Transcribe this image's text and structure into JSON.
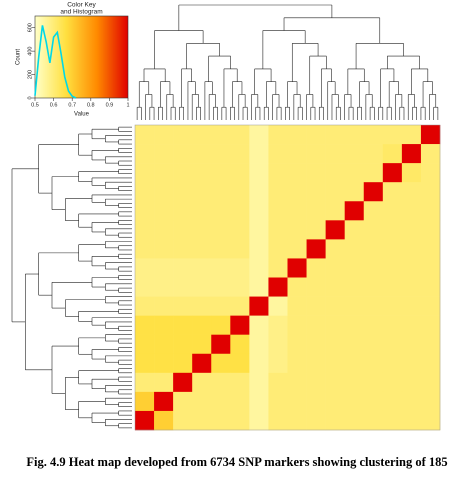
{
  "chart_data": [
    {
      "type": "histogram-key",
      "title": [
        "Color Key",
        "and Histogram"
      ],
      "x_label": "Value",
      "y_label": "Count",
      "x": [
        0.5,
        0.52,
        0.54,
        0.56,
        0.58,
        0.6,
        0.62,
        0.64,
        0.66,
        0.68,
        0.7,
        0.72
      ],
      "values": [
        20,
        350,
        620,
        480,
        300,
        520,
        560,
        380,
        180,
        60,
        15,
        0
      ],
      "color": "#00d8e8",
      "xlim": [
        0.5,
        1
      ],
      "xticks": [
        0.5,
        0.6,
        0.7,
        0.8,
        0.9,
        1
      ],
      "ylim": [
        0,
        700
      ],
      "yticks": [
        0,
        200,
        400,
        600
      ],
      "colormap": [
        "#ffffc8",
        "#ffe040",
        "#ff8a00",
        "#e00000"
      ]
    },
    {
      "type": "heatmap",
      "matrix": [
        [
          0.6,
          0.6,
          0.6,
          0.6,
          0.6,
          0.6,
          0.55,
          0.6,
          0.6,
          0.6,
          0.6,
          0.6,
          0.6,
          0.6,
          0.6,
          1
        ],
        [
          0.6,
          0.6,
          0.6,
          0.6,
          0.6,
          0.6,
          0.55,
          0.6,
          0.6,
          0.6,
          0.6,
          0.6,
          0.6,
          0.62,
          1,
          0.6
        ],
        [
          0.6,
          0.6,
          0.6,
          0.6,
          0.6,
          0.6,
          0.55,
          0.6,
          0.6,
          0.6,
          0.6,
          0.6,
          0.6,
          1,
          0.62,
          0.6
        ],
        [
          0.6,
          0.6,
          0.6,
          0.6,
          0.6,
          0.6,
          0.55,
          0.6,
          0.6,
          0.6,
          0.6,
          0.6,
          1,
          0.6,
          0.6,
          0.6
        ],
        [
          0.6,
          0.6,
          0.6,
          0.6,
          0.6,
          0.6,
          0.55,
          0.6,
          0.6,
          0.6,
          0.6,
          1,
          0.6,
          0.6,
          0.6,
          0.6
        ],
        [
          0.6,
          0.6,
          0.6,
          0.6,
          0.6,
          0.6,
          0.55,
          0.6,
          0.6,
          0.6,
          1,
          0.6,
          0.6,
          0.6,
          0.6,
          0.6
        ],
        [
          0.6,
          0.6,
          0.6,
          0.6,
          0.6,
          0.6,
          0.55,
          0.6,
          0.6,
          1,
          0.6,
          0.6,
          0.6,
          0.6,
          0.6,
          0.6
        ],
        [
          0.58,
          0.58,
          0.58,
          0.58,
          0.58,
          0.58,
          0.55,
          0.6,
          1,
          0.6,
          0.6,
          0.6,
          0.6,
          0.6,
          0.6,
          0.6
        ],
        [
          0.58,
          0.58,
          0.58,
          0.58,
          0.58,
          0.58,
          0.55,
          1,
          0.6,
          0.6,
          0.6,
          0.6,
          0.6,
          0.6,
          0.6,
          0.6
        ],
        [
          0.6,
          0.6,
          0.6,
          0.6,
          0.6,
          0.6,
          1,
          0.55,
          0.6,
          0.6,
          0.6,
          0.6,
          0.6,
          0.6,
          0.6,
          0.6
        ],
        [
          0.66,
          0.66,
          0.66,
          0.66,
          0.66,
          1,
          0.55,
          0.58,
          0.6,
          0.6,
          0.6,
          0.6,
          0.6,
          0.6,
          0.6,
          0.6
        ],
        [
          0.66,
          0.66,
          0.66,
          0.66,
          1,
          0.66,
          0.55,
          0.58,
          0.6,
          0.6,
          0.6,
          0.6,
          0.6,
          0.6,
          0.6,
          0.6
        ],
        [
          0.66,
          0.66,
          0.66,
          1,
          0.66,
          0.66,
          0.55,
          0.58,
          0.6,
          0.6,
          0.6,
          0.6,
          0.6,
          0.6,
          0.6,
          0.6
        ],
        [
          0.6,
          0.6,
          1,
          0.6,
          0.6,
          0.6,
          0.55,
          0.6,
          0.6,
          0.6,
          0.6,
          0.6,
          0.6,
          0.6,
          0.6,
          0.6
        ],
        [
          0.7,
          1,
          0.6,
          0.6,
          0.6,
          0.6,
          0.55,
          0.6,
          0.6,
          0.6,
          0.6,
          0.6,
          0.6,
          0.6,
          0.6,
          0.6
        ],
        [
          1,
          0.7,
          0.6,
          0.6,
          0.6,
          0.6,
          0.55,
          0.6,
          0.6,
          0.6,
          0.6,
          0.6,
          0.6,
          0.6,
          0.6,
          0.6
        ]
      ]
    },
    {
      "type": "caption",
      "title": "Fig. 4.9 Heat map developed from 6734 SNP markers showing clustering of 185"
    }
  ]
}
